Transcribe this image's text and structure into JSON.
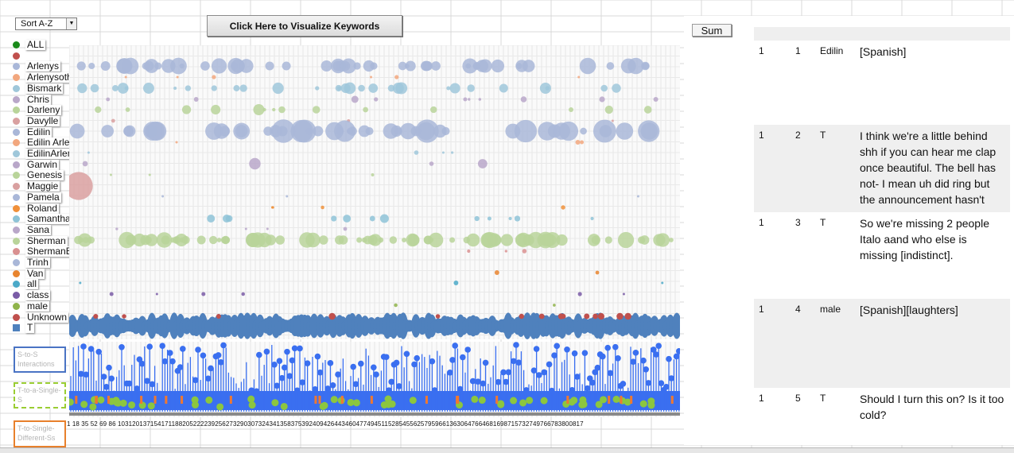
{
  "toolbar": {
    "sort_value": "Sort A-Z",
    "visualize_label": "Click Here to Visualize Keywords",
    "sum_label": "Sum"
  },
  "legend": [
    {
      "label": "ALL",
      "color": "#1a8a1a",
      "shape": "dot"
    },
    {
      "label": "",
      "color": "#c0504d",
      "shape": "dot"
    },
    {
      "label": "Arlenys",
      "color": "#a9b7d8",
      "shape": "dot"
    },
    {
      "label": "Arlenysothers",
      "color": "#f2a77e",
      "shape": "dot"
    },
    {
      "label": "Bismark",
      "color": "#9fc7da",
      "shape": "dot"
    },
    {
      "label": "Chris",
      "color": "#b9a7c9",
      "shape": "dot"
    },
    {
      "label": "Darleny",
      "color": "#b9d49a",
      "shape": "dot"
    },
    {
      "label": "Davylle",
      "color": "#d9a0a0",
      "shape": "dot"
    },
    {
      "label": "Edilin",
      "color": "#a9b7d8",
      "shape": "dot"
    },
    {
      "label": "Edilin Arlenys",
      "color": "#f2a77e",
      "shape": "dot"
    },
    {
      "label": "EdilinArlenys",
      "color": "#9fc7da",
      "shape": "dot"
    },
    {
      "label": "Garwin",
      "color": "#b9a7c9",
      "shape": "dot"
    },
    {
      "label": "Genesis",
      "color": "#b9d49a",
      "shape": "dot"
    },
    {
      "label": "Maggie",
      "color": "#d9a0a0",
      "shape": "dot"
    },
    {
      "label": "Pamela",
      "color": "#a9b7d8",
      "shape": "dot"
    },
    {
      "label": "Roland",
      "color": "#f0903a",
      "shape": "dot"
    },
    {
      "label": "Samantha",
      "color": "#8ec3d7",
      "shape": "dot"
    },
    {
      "label": "Sana",
      "color": "#b9a7c9",
      "shape": "dot"
    },
    {
      "label": "Sherman",
      "color": "#b9d49a",
      "shape": "dot"
    },
    {
      "label": "ShermanEdilin",
      "color": "#d99090",
      "shape": "dot"
    },
    {
      "label": "Trinh",
      "color": "#a9b7d8",
      "shape": "dot"
    },
    {
      "label": "Van",
      "color": "#e8842e",
      "shape": "dot"
    },
    {
      "label": "all",
      "color": "#4ba9c8",
      "shape": "dot"
    },
    {
      "label": "class",
      "color": "#7a5ca6",
      "shape": "dot"
    },
    {
      "label": "male",
      "color": "#8fb34a",
      "shape": "dot"
    },
    {
      "label": "Unknown",
      "color": "#c0504d",
      "shape": "dot"
    },
    {
      "label": "T",
      "color": "#4f81bd",
      "shape": "square"
    }
  ],
  "interaction_boxes": {
    "s2s": "S-to-S Interactions",
    "t2s": "T-to-a-Single-S",
    "t2d": "T-to-Single-Different-Ss"
  },
  "x_index_labels": "1  18  35  52  69  86 103120137154171188205222239256273290307324341358375392409426443460477494511528545562579596613630647664681698715732749766783800817",
  "transcript": {
    "rows": [
      {
        "col1": "1",
        "col2": "1",
        "speaker": "Edilin",
        "text": "[Spanish]"
      },
      {
        "col1": "1",
        "col2": "2",
        "speaker": "T",
        "text": "I think we're a little behind shh if you can hear me clap once beautiful. The bell has not- I mean uh did ring but the announcement hasn't come on yet."
      },
      {
        "col1": "1",
        "col2": "3",
        "speaker": "T",
        "text": "So we're missing 2 people Italo aand who else is missing [indistinct]."
      },
      {
        "col1": "1",
        "col2": "4",
        "speaker": "male",
        "text": "[Spanish][laughters]"
      },
      {
        "col1": "1",
        "col2": "5",
        "speaker": "T",
        "text": "Should I turn this on? Is it too cold?"
      }
    ]
  },
  "colors": {
    "teacher_blue": "#4f81bd",
    "s2s_blue": "#3a6ff0",
    "t2s_green": "#8cc63f",
    "t2d_orange": "#f07830"
  }
}
